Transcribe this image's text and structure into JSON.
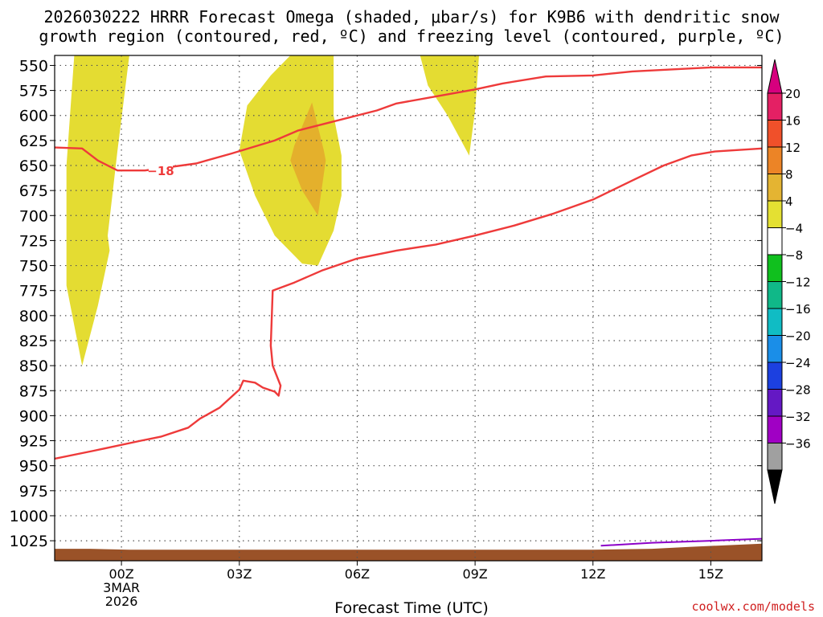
{
  "header": {
    "title_line1": "2026030222 HRRR Forecast Omega (shaded, μbar/s) for K9B6 with dendritic snow",
    "title_line2": "growth region (contoured, red, ºC) and freezing level (contoured, purple, ºC)"
  },
  "credit": "coolwx.com/models",
  "chart_data": {
    "type": "contour",
    "xlabel": "Forecast Time (UTC)",
    "ylabel": "",
    "xlim": [
      -1.7,
      16.3
    ],
    "ylim": [
      1045,
      540
    ],
    "x_ticks": [
      {
        "value": 0,
        "label": "00Z",
        "sub": [
          "3MAR",
          "2026"
        ]
      },
      {
        "value": 3,
        "label": "03Z",
        "sub": []
      },
      {
        "value": 6,
        "label": "06Z",
        "sub": []
      },
      {
        "value": 9,
        "label": "09Z",
        "sub": []
      },
      {
        "value": 12,
        "label": "12Z",
        "sub": []
      },
      {
        "value": 15,
        "label": "15Z",
        "sub": []
      }
    ],
    "y_ticks": [
      550,
      575,
      600,
      625,
      650,
      675,
      700,
      725,
      750,
      775,
      800,
      825,
      850,
      875,
      900,
      925,
      950,
      975,
      1000,
      1025
    ],
    "grid": true,
    "colorbar": {
      "labels": [
        "20",
        "16",
        "12",
        "8",
        "4",
        "−4",
        "−8",
        "−12",
        "−16",
        "−20",
        "−24",
        "−28",
        "−32",
        "−36"
      ],
      "top_color": "#d6007e",
      "bottom_color": "#000000",
      "colors": [
        "#e42064",
        "#f0502a",
        "#ec8426",
        "#e4b432",
        "#e4e032",
        "#ffffff",
        "#10c01e",
        "#10b888",
        "#10bcc4",
        "#1a8ee8",
        "#1c40e0",
        "#6418c4",
        "#a000c4",
        "#a0a0a0"
      ]
    },
    "omega_regions": [
      {
        "value": 4,
        "color": "#e4dc32",
        "points": [
          [
            -1.2,
            540
          ],
          [
            0.2,
            540
          ],
          [
            -0.1,
            635
          ],
          [
            -0.35,
            720
          ],
          [
            -0.3,
            735
          ],
          [
            -0.6,
            790
          ],
          [
            -1.0,
            850
          ],
          [
            -1.4,
            770
          ],
          [
            -1.4,
            650
          ]
        ]
      },
      {
        "value": 4,
        "color": "#e4dc32",
        "points": [
          [
            4.3,
            540
          ],
          [
            5.4,
            540
          ],
          [
            5.4,
            600
          ],
          [
            5.6,
            640
          ],
          [
            5.6,
            680
          ],
          [
            5.4,
            715
          ],
          [
            5.0,
            750
          ],
          [
            4.6,
            748
          ],
          [
            3.9,
            720
          ],
          [
            3.4,
            680
          ],
          [
            3.0,
            635
          ],
          [
            3.2,
            590
          ],
          [
            3.8,
            560
          ]
        ]
      },
      {
        "value": 4,
        "color": "#e4dc32",
        "points": [
          [
            7.6,
            540
          ],
          [
            9.1,
            540
          ],
          [
            9.0,
            595
          ],
          [
            8.85,
            640
          ],
          [
            8.3,
            600
          ],
          [
            7.8,
            570
          ]
        ]
      },
      {
        "value": 8,
        "color": "#e4b02c",
        "points": [
          [
            4.85,
            587
          ],
          [
            5.15,
            635
          ],
          [
            5.2,
            645
          ],
          [
            5.0,
            700
          ],
          [
            4.6,
            675
          ],
          [
            4.3,
            645
          ],
          [
            4.4,
            630
          ]
        ]
      }
    ],
    "dgz_contours": [
      {
        "label": "−18",
        "label_x": 1.0,
        "label_y": 655,
        "color": "#ee3a3a",
        "points": [
          [
            -1.7,
            632
          ],
          [
            -1.0,
            633
          ],
          [
            -0.6,
            645
          ],
          [
            -0.1,
            655
          ],
          [
            0.6,
            655
          ],
          [
            1.9,
            648
          ],
          [
            2.8,
            638
          ],
          [
            3.9,
            625
          ],
          [
            4.5,
            615
          ],
          [
            5.2,
            608
          ],
          [
            6.5,
            595
          ],
          [
            7.0,
            588
          ],
          [
            8.0,
            581
          ],
          [
            9.0,
            574
          ],
          [
            9.7,
            568
          ],
          [
            10.8,
            561
          ],
          [
            12.0,
            560
          ],
          [
            13.0,
            556
          ],
          [
            14.0,
            554
          ],
          [
            15.0,
            552
          ],
          [
            16.3,
            552
          ]
        ]
      },
      {
        "label": "",
        "label_x": 0,
        "label_y": 0,
        "color": "#ee3a3a",
        "points": [
          [
            -1.7,
            943
          ],
          [
            -0.7,
            935
          ],
          [
            0.5,
            925
          ],
          [
            1.0,
            921
          ],
          [
            1.7,
            912
          ],
          [
            2.0,
            903
          ],
          [
            2.5,
            892
          ],
          [
            3.0,
            874
          ],
          [
            3.1,
            865
          ],
          [
            3.4,
            867
          ],
          [
            3.6,
            872
          ],
          [
            3.9,
            876
          ],
          [
            4.0,
            880
          ],
          [
            4.05,
            870
          ],
          [
            3.95,
            860
          ],
          [
            3.85,
            850
          ],
          [
            3.8,
            830
          ],
          [
            3.85,
            775
          ],
          [
            4.4,
            767
          ],
          [
            5.1,
            755
          ],
          [
            6.0,
            743
          ],
          [
            7.0,
            735
          ],
          [
            8.0,
            729
          ],
          [
            9.0,
            720
          ],
          [
            10.0,
            710
          ],
          [
            11.0,
            698
          ],
          [
            12.0,
            684
          ],
          [
            13.0,
            665
          ],
          [
            13.8,
            650
          ],
          [
            14.5,
            640
          ],
          [
            15.1,
            636
          ],
          [
            16.3,
            633
          ]
        ]
      }
    ],
    "freezing_level": {
      "color": "#8c00c8",
      "points": [
        [
          12.2,
          1030
        ],
        [
          13.5,
          1027
        ],
        [
          15.0,
          1025
        ],
        [
          16.3,
          1023
        ]
      ]
    },
    "terrain": {
      "color": "#9a5228",
      "points": [
        [
          -1.7,
          1033
        ],
        [
          -0.8,
          1033
        ],
        [
          0.2,
          1034
        ],
        [
          12.0,
          1034
        ],
        [
          13.5,
          1033
        ],
        [
          14.5,
          1031
        ],
        [
          16.3,
          1028
        ]
      ]
    }
  }
}
